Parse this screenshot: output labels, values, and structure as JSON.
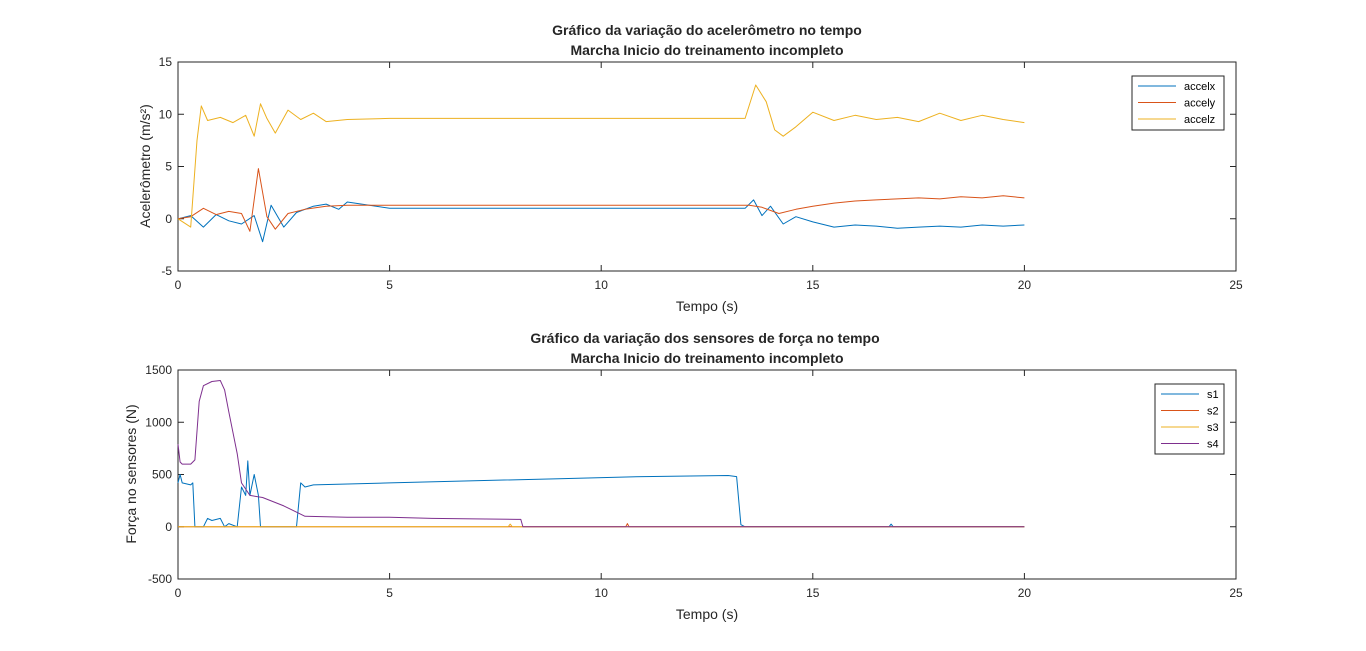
{
  "chart_data": [
    {
      "type": "line",
      "title": "Gráfico da variação do acelerômetro no tempo",
      "subtitle": "Marcha Inicio do treinamento incompleto",
      "xlabel": "Tempo (s)",
      "ylabel": "Acelerômetro (m/s²)",
      "xlim": [
        0,
        25
      ],
      "ylim": [
        -5,
        15
      ],
      "xticks": [
        0,
        5,
        10,
        15,
        20,
        25
      ],
      "yticks": [
        -5,
        0,
        5,
        10,
        15
      ],
      "grid": false,
      "legend_position": "top-right",
      "series": [
        {
          "name": "accelx",
          "color": "#0072BD",
          "x": [
            0,
            0.3,
            0.6,
            0.9,
            1.2,
            1.5,
            1.8,
            2.0,
            2.2,
            2.5,
            2.8,
            3.2,
            3.5,
            3.8,
            4.0,
            5,
            8,
            10,
            13,
            13.4,
            13.6,
            13.8,
            14.0,
            14.3,
            14.6,
            15.0,
            15.5,
            16.0,
            16.5,
            17.0,
            17.5,
            18.0,
            18.5,
            19.0,
            19.5,
            20.0
          ],
          "y": [
            0,
            0.3,
            -0.8,
            0.4,
            -0.2,
            -0.5,
            0.3,
            -2.2,
            1.3,
            -0.8,
            0.6,
            1.2,
            1.4,
            0.9,
            1.6,
            1.0,
            1.0,
            1.0,
            1.0,
            1.0,
            1.8,
            0.3,
            1.2,
            -0.5,
            0.2,
            -0.3,
            -0.8,
            -0.6,
            -0.7,
            -0.9,
            -0.8,
            -0.7,
            -0.8,
            -0.6,
            -0.7,
            -0.6
          ]
        },
        {
          "name": "accely",
          "color": "#D95319",
          "x": [
            0,
            0.3,
            0.6,
            0.9,
            1.2,
            1.5,
            1.7,
            1.9,
            2.1,
            2.3,
            2.6,
            3.0,
            3.5,
            4.0,
            5,
            8,
            10,
            13,
            13.5,
            13.8,
            14.2,
            14.6,
            15.0,
            15.5,
            16.0,
            16.5,
            17.0,
            17.5,
            18.0,
            18.5,
            19.0,
            19.5,
            20.0
          ],
          "y": [
            0,
            0.2,
            1.0,
            0.4,
            0.7,
            0.5,
            -1.2,
            4.8,
            0.2,
            -1.0,
            0.5,
            0.9,
            1.2,
            1.3,
            1.3,
            1.3,
            1.3,
            1.3,
            1.3,
            1.1,
            0.5,
            0.9,
            1.2,
            1.5,
            1.7,
            1.8,
            1.9,
            2.0,
            1.9,
            2.1,
            2.0,
            2.2,
            2.0
          ]
        },
        {
          "name": "accelz",
          "color": "#EDB120",
          "x": [
            0,
            0.3,
            0.45,
            0.55,
            0.7,
            1.0,
            1.3,
            1.6,
            1.8,
            1.95,
            2.1,
            2.3,
            2.6,
            2.9,
            3.2,
            3.5,
            4.0,
            5,
            8,
            10,
            13,
            13.4,
            13.65,
            13.9,
            14.1,
            14.3,
            14.6,
            15.0,
            15.5,
            16.0,
            16.5,
            17.0,
            17.5,
            18.0,
            18.5,
            19.0,
            19.5,
            20.0
          ],
          "y": [
            0,
            -0.8,
            7.5,
            10.8,
            9.4,
            9.7,
            9.2,
            9.9,
            7.9,
            11.0,
            9.6,
            8.2,
            10.4,
            9.5,
            10.1,
            9.3,
            9.5,
            9.6,
            9.6,
            9.6,
            9.6,
            9.6,
            12.8,
            11.2,
            8.5,
            7.9,
            8.8,
            10.2,
            9.4,
            9.9,
            9.5,
            9.7,
            9.3,
            10.1,
            9.4,
            9.9,
            9.5,
            9.2
          ]
        }
      ]
    },
    {
      "type": "line",
      "title": "Gráfico da variação dos sensores de força no tempo",
      "subtitle": "Marcha Inicio do treinamento incompleto",
      "xlabel": "Tempo (s)",
      "ylabel": "Força no sensores (N)",
      "xlim": [
        0,
        25
      ],
      "ylim": [
        -500,
        1500
      ],
      "xticks": [
        0,
        5,
        10,
        15,
        20,
        25
      ],
      "yticks": [
        -500,
        0,
        500,
        1000,
        1500
      ],
      "grid": false,
      "legend_position": "top-right",
      "series": [
        {
          "name": "s1",
          "color": "#0072BD",
          "x": [
            0,
            0.05,
            0.1,
            0.3,
            0.35,
            0.4,
            0.6,
            0.7,
            0.8,
            1.0,
            1.1,
            1.2,
            1.4,
            1.5,
            1.6,
            1.65,
            1.7,
            1.8,
            1.9,
            1.95,
            2.0,
            2.8,
            2.9,
            3.0,
            3.2,
            5,
            7,
            9,
            11,
            13,
            13.2,
            13.3,
            13.4,
            16.8,
            16.85,
            16.9,
            20.0
          ],
          "y": [
            420,
            500,
            420,
            400,
            420,
            0,
            0,
            80,
            60,
            80,
            0,
            30,
            0,
            380,
            300,
            630,
            300,
            500,
            300,
            0,
            0,
            0,
            420,
            380,
            400,
            420,
            440,
            460,
            480,
            490,
            480,
            20,
            0,
            0,
            25,
            0,
            0
          ]
        },
        {
          "name": "s2",
          "color": "#D95319",
          "x": [
            0,
            10.58,
            10.62,
            10.66,
            20.0
          ],
          "y": [
            0,
            0,
            30,
            0,
            0
          ]
        },
        {
          "name": "s3",
          "color": "#EDB120",
          "x": [
            0,
            7.8,
            7.85,
            7.9,
            20.0
          ],
          "y": [
            0,
            0,
            25,
            0,
            0
          ]
        },
        {
          "name": "s4",
          "color": "#7E2F8E",
          "x": [
            0,
            0.05,
            0.1,
            0.3,
            0.4,
            0.5,
            0.6,
            0.8,
            1.0,
            1.1,
            1.2,
            1.3,
            1.4,
            1.5,
            1.7,
            2.0,
            2.5,
            3.0,
            4.0,
            5,
            6,
            7,
            8.0,
            8.1,
            8.15,
            20.0
          ],
          "y": [
            790,
            620,
            600,
            600,
            640,
            1200,
            1350,
            1390,
            1400,
            1310,
            1100,
            900,
            700,
            420,
            300,
            280,
            200,
            100,
            90,
            90,
            80,
            75,
            70,
            70,
            0,
            0
          ]
        }
      ]
    }
  ]
}
